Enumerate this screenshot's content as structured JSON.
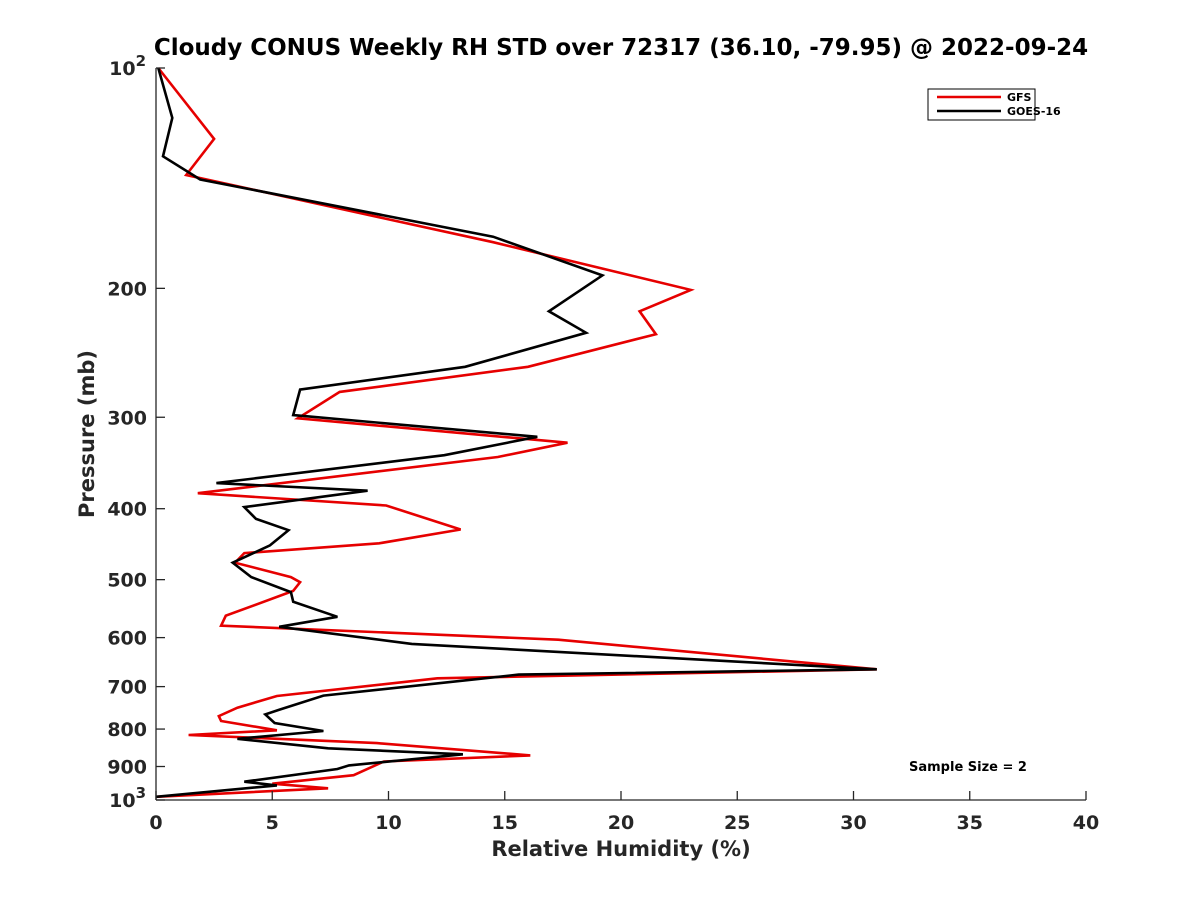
{
  "chart_data": {
    "type": "line",
    "title": "Cloudy CONUS Weekly RH STD over 72317 (36.10, -79.95) @ 2022-09-24",
    "xlabel": "Relative Humidity (%)",
    "ylabel": "Pressure (mb)",
    "xlim": [
      0,
      40
    ],
    "ylim": [
      100,
      1000
    ],
    "y_scale": "log",
    "y_reversed": true,
    "grid": false,
    "legend_position": "top-right",
    "x_ticks": [
      "0",
      "5",
      "10",
      "15",
      "20",
      "25",
      "30",
      "35",
      "40"
    ],
    "y_ticks": [
      {
        "value": 100,
        "label": "10",
        "exp": "2"
      },
      {
        "value": 200,
        "label": "200",
        "exp": ""
      },
      {
        "value": 300,
        "label": "300",
        "exp": ""
      },
      {
        "value": 400,
        "label": "400",
        "exp": ""
      },
      {
        "value": 500,
        "label": "500",
        "exp": ""
      },
      {
        "value": 600,
        "label": "600",
        "exp": ""
      },
      {
        "value": 700,
        "label": "700",
        "exp": ""
      },
      {
        "value": 800,
        "label": "800",
        "exp": ""
      },
      {
        "value": 900,
        "label": "900",
        "exp": ""
      },
      {
        "value": 1000,
        "label": "10",
        "exp": "3"
      }
    ],
    "annotation": "Sample Size = 2",
    "series": [
      {
        "name": "GFS",
        "color": "#e60000",
        "x": [
          0.1,
          2.5,
          1.3,
          14.5,
          23.0,
          20.8,
          21.5,
          16.0,
          7.9,
          6.1,
          17.7,
          14.7,
          1.8,
          9.9,
          13.1,
          9.6,
          3.8,
          3.4,
          5.8,
          6.2,
          5.9,
          3.0,
          2.8,
          17.3,
          31.0,
          12.1,
          5.2,
          3.5,
          2.7,
          2.8,
          5.2,
          1.4,
          9.5,
          16.1,
          9.8,
          8.5,
          5.0,
          7.4,
          0.0
        ],
        "y": [
          100,
          125,
          140,
          173,
          201,
          215,
          231,
          256,
          277,
          301,
          325,
          340,
          381,
          396,
          427,
          446,
          460,
          474,
          496,
          504,
          518,
          560,
          578,
          604,
          663,
          682,
          721,
          748,
          768,
          780,
          803,
          815,
          836,
          869,
          886,
          925,
          950,
          964,
          990
        ]
      },
      {
        "name": "GOES-16",
        "color": "#000000",
        "x": [
          0.1,
          0.7,
          0.3,
          1.9,
          14.5,
          19.2,
          16.9,
          18.5,
          13.3,
          6.2,
          5.9,
          16.4,
          12.4,
          2.6,
          9.1,
          3.8,
          4.3,
          5.7,
          4.9,
          3.3,
          4.1,
          5.8,
          5.9,
          7.8,
          5.3,
          11.0,
          31.0,
          15.6,
          7.2,
          5.3,
          4.7,
          5.1,
          7.2,
          3.5,
          7.4,
          13.2,
          8.3,
          7.8,
          3.8,
          5.2,
          0.0
        ],
        "y": [
          100,
          117,
          132,
          142,
          170,
          192,
          215,
          230,
          256,
          275,
          298,
          319,
          338,
          369,
          378,
          398,
          413,
          428,
          449,
          474,
          496,
          520,
          536,
          562,
          580,
          612,
          663,
          674,
          720,
          753,
          764,
          785,
          805,
          825,
          850,
          866,
          897,
          907,
          944,
          955,
          990
        ]
      }
    ]
  }
}
